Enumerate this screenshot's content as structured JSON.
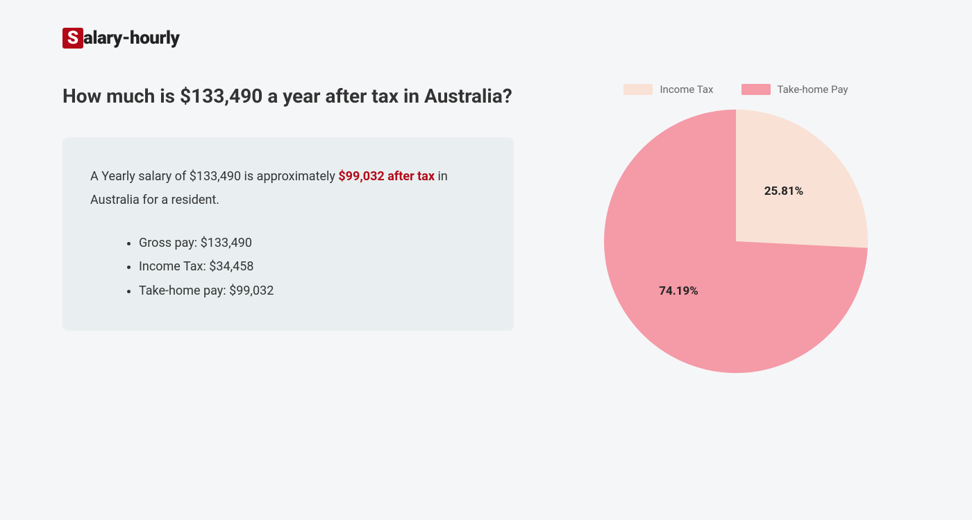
{
  "logo": {
    "letter": "S",
    "rest": "alary-hourly"
  },
  "heading": "How much is $133,490 a year after tax in Australia?",
  "card": {
    "summary_prefix": "A Yearly salary of $133,490 is approximately ",
    "summary_highlight": "$99,032 after tax",
    "summary_suffix": " in Australia for a resident.",
    "details": [
      "Gross pay: $133,490",
      "Income Tax: $34,458",
      "Take-home pay: $99,032"
    ]
  },
  "chart": {
    "type": "pie",
    "radius": 190,
    "background_color": "#f5f6f8",
    "slices": [
      {
        "label": "Income Tax",
        "value": 25.81,
        "color": "#f9e1d6",
        "display": "25.81%"
      },
      {
        "label": "Take-home Pay",
        "value": 74.19,
        "color": "#f59aa7",
        "display": "74.19%"
      }
    ],
    "legend_fontsize": 15,
    "legend_text_color": "#666666",
    "label_fontsize": 17,
    "label_color": "#222222",
    "card_background": "#e9eff0",
    "highlight_color": "#b30818"
  }
}
